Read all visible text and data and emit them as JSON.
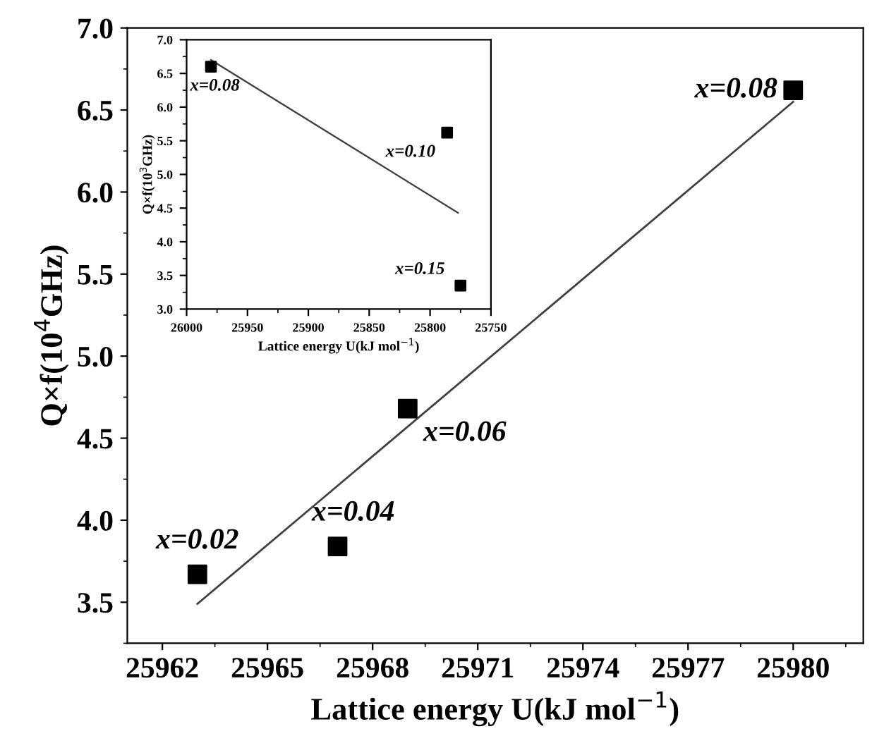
{
  "chart_data": [
    {
      "type": "scatter",
      "xlabel": "Lattice energy U(kJ mol$^{−1}$)",
      "ylabel": "Q×f(10$^{4}$GHz)",
      "xlim": [
        25961,
        25982
      ],
      "ylim": [
        3.25,
        7.0
      ],
      "xticks": [
        25962,
        25965,
        25968,
        25971,
        25974,
        25977,
        25980
      ],
      "yticks": [
        3.5,
        {
          "value": 4,
          "label": "4.0"
        },
        4.5,
        {
          "value": 5,
          "label": "5.0"
        },
        5.5,
        {
          "value": 6,
          "label": "6.0"
        },
        6.5,
        {
          "value": 7,
          "label": "7.0"
        }
      ],
      "grid": false,
      "legend": false,
      "series": [
        {
          "marker": "square",
          "color": "#000000",
          "x": [
            25963,
            25967,
            25969,
            25980
          ],
          "values": [
            3.67,
            3.84,
            4.68,
            6.62
          ]
        },
        {
          "type": "line",
          "marker": "none",
          "line_style": "solid",
          "color": "#404040",
          "x": [
            25963,
            25980
          ],
          "values": [
            3.49,
            6.55
          ]
        }
      ],
      "annotations": [
        {
          "text": "x=0.02",
          "x": 25963,
          "y": 3.67
        },
        {
          "text": "x=0.04",
          "x": 25967,
          "y": 3.84
        },
        {
          "text": "x=0.06",
          "x": 25969,
          "y": 4.68
        },
        {
          "text": "x=0.08",
          "x": 25980,
          "y": 6.62
        }
      ]
    },
    {
      "type": "scatter",
      "xlabel": "Lattice energy U(kJ mol$^{−1}$)",
      "ylabel": "Q×f(10$^{3}$GHz)",
      "xlim": [
        26000,
        25750
      ],
      "ylim": [
        3.0,
        7.0
      ],
      "xticks": [
        26000,
        25950,
        25900,
        25850,
        25800,
        25750
      ],
      "yticks": [
        {
          "value": 3,
          "label": "3.0"
        },
        3.5,
        {
          "value": 4,
          "label": "4.0"
        },
        4.5,
        {
          "value": 5,
          "label": "5.0"
        },
        5.5,
        {
          "value": 6,
          "label": "6.0"
        },
        6.5,
        {
          "value": 7,
          "label": "7.0"
        }
      ],
      "grid": false,
      "legend": false,
      "series": [
        {
          "marker": "square",
          "color": "#000000",
          "x": [
            25980,
            25786,
            25775
          ],
          "values": [
            6.6,
            5.62,
            3.35
          ]
        },
        {
          "type": "line",
          "marker": "none",
          "line_style": "solid",
          "color": "#404040",
          "x": [
            25980,
            25777
          ],
          "values": [
            6.7,
            4.43
          ]
        }
      ],
      "annotations": [
        {
          "text": "x=0.08",
          "x": 25980,
          "y": 6.6
        },
        {
          "text": "x=0.10",
          "x": 25786,
          "y": 5.62
        },
        {
          "text": "x=0.15",
          "x": 25775,
          "y": 3.35
        }
      ]
    }
  ]
}
